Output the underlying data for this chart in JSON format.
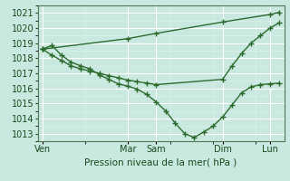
{
  "background_color": "#c8e8e0",
  "grid_color": "#ffffff",
  "grid_minor_color": "#ddf0ec",
  "line_color": "#2d6b2d",
  "xlabel": "Pression niveau de la mer( hPa )",
  "ylim": [
    1012.5,
    1021.5
  ],
  "yticks": [
    1013,
    1014,
    1015,
    1016,
    1017,
    1018,
    1019,
    1020,
    1021
  ],
  "day_labels": [
    "Ven",
    "Mar",
    "Sam",
    "Dim",
    "Lun"
  ],
  "day_x": [
    0,
    9,
    12,
    19,
    24
  ],
  "xlim": [
    -0.5,
    25.5
  ],
  "line1_x": [
    0,
    1,
    2,
    3,
    4,
    5,
    6,
    7,
    8,
    9,
    10,
    11,
    12,
    13,
    14,
    15,
    16,
    17,
    18,
    19,
    20,
    21,
    22,
    23,
    24,
    25
  ],
  "line1_y": [
    1018.6,
    1018.85,
    1018.2,
    1017.75,
    1017.5,
    1017.3,
    1016.9,
    1016.6,
    1016.3,
    1016.15,
    1015.95,
    1015.6,
    1015.1,
    1014.5,
    1013.7,
    1013.0,
    1012.75,
    1013.1,
    1013.5,
    1014.1,
    1014.9,
    1015.7,
    1016.1,
    1016.25,
    1016.3,
    1016.35
  ],
  "line2_x": [
    0,
    1,
    2,
    3,
    4,
    5,
    6,
    7,
    8,
    9,
    10,
    11,
    12,
    19,
    20,
    21,
    22,
    23,
    24,
    25
  ],
  "line2_y": [
    1018.6,
    1018.2,
    1017.85,
    1017.5,
    1017.3,
    1017.15,
    1017.0,
    1016.85,
    1016.7,
    1016.55,
    1016.45,
    1016.35,
    1016.25,
    1016.6,
    1017.5,
    1018.3,
    1019.0,
    1019.5,
    1020.0,
    1020.35
  ],
  "line3_x": [
    0,
    9,
    12,
    19,
    24,
    25
  ],
  "line3_y": [
    1018.6,
    1019.3,
    1019.65,
    1020.4,
    1020.9,
    1021.05
  ]
}
